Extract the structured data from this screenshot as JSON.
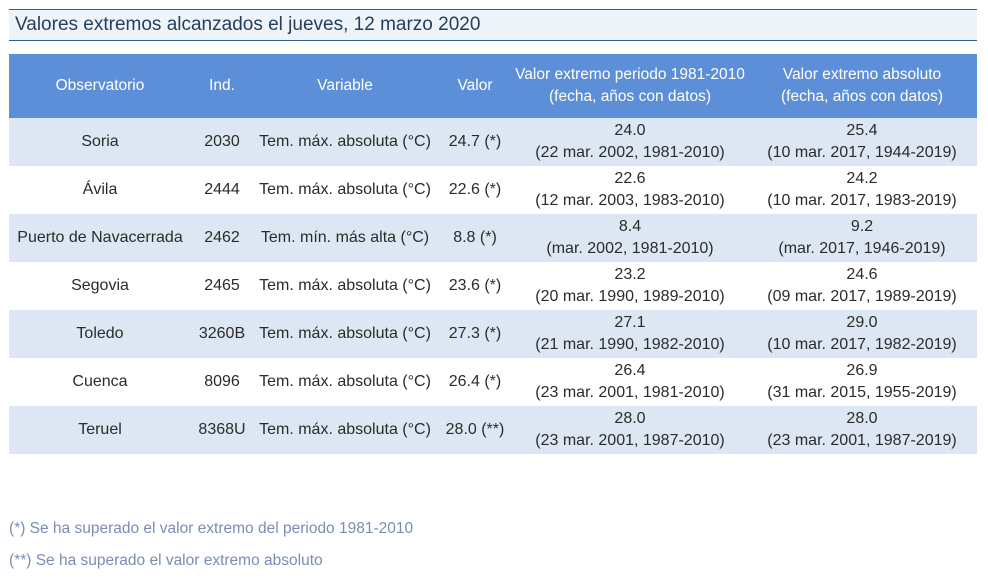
{
  "title": "Valores extremos alcanzados el jueves, 12 marzo 2020",
  "colors": {
    "header_bg": "#5d8fd8",
    "row_alt_bg": "#dce7f3",
    "title_border": "#2e5f8f",
    "note_text": "#7b8db0"
  },
  "headers": {
    "observatorio": "Observatorio",
    "ind": "Ind.",
    "variable": "Variable",
    "valor": "Valor",
    "periodo_line1": "Valor extremo periodo 1981-2010",
    "periodo_line2": "(fecha, años con datos)",
    "absoluto_line1": "Valor extremo absoluto",
    "absoluto_line2": "(fecha, años con datos)"
  },
  "rows": [
    {
      "obs": "Soria",
      "ind": "2030",
      "var": "Tem. máx. absoluta (°C)",
      "valor": "24.7 (*)",
      "per_val": "24.0",
      "per_info": "(22 mar. 2002, 1981-2010)",
      "abs_val": "25.4",
      "abs_info": "(10 mar. 2017, 1944-2019)"
    },
    {
      "obs": "Ávila",
      "ind": "2444",
      "var": "Tem. máx. absoluta (°C)",
      "valor": "22.6 (*)",
      "per_val": "22.6",
      "per_info": "(12 mar. 2003, 1983-2010)",
      "abs_val": "24.2",
      "abs_info": "(10 mar. 2017, 1983-2019)"
    },
    {
      "obs": "Puerto de Navacerrada",
      "ind": "2462",
      "var": "Tem. mín. más alta (°C)",
      "valor": "8.8 (*)",
      "per_val": "8.4",
      "per_info": "(mar. 2002, 1981-2010)",
      "abs_val": "9.2",
      "abs_info": "(mar. 2017, 1946-2019)"
    },
    {
      "obs": "Segovia",
      "ind": "2465",
      "var": "Tem. máx. absoluta (°C)",
      "valor": "23.6 (*)",
      "per_val": "23.2",
      "per_info": "(20 mar. 1990, 1989-2010)",
      "abs_val": "24.6",
      "abs_info": "(09 mar. 2017, 1989-2019)"
    },
    {
      "obs": "Toledo",
      "ind": "3260B",
      "var": "Tem. máx. absoluta (°C)",
      "valor": "27.3 (*)",
      "per_val": "27.1",
      "per_info": "(21 mar. 1990, 1982-2010)",
      "abs_val": "29.0",
      "abs_info": "(10 mar. 2017, 1982-2019)"
    },
    {
      "obs": "Cuenca",
      "ind": "8096",
      "var": "Tem. máx. absoluta (°C)",
      "valor": "26.4 (*)",
      "per_val": "26.4",
      "per_info": "(23 mar. 2001, 1981-2010)",
      "abs_val": "26.9",
      "abs_info": "(31 mar. 2015, 1955-2019)"
    },
    {
      "obs": "Teruel",
      "ind": "8368U",
      "var": "Tem. máx. absoluta (°C)",
      "valor": "28.0 (**)",
      "per_val": "28.0",
      "per_info": "(23 mar. 2001, 1987-2010)",
      "abs_val": "28.0",
      "abs_info": "(23 mar. 2001, 1987-2019)"
    }
  ],
  "notes": [
    "(*) Se ha superado el valor extremo del periodo 1981-2010",
    "(**) Se ha superado el valor extremo absoluto"
  ]
}
